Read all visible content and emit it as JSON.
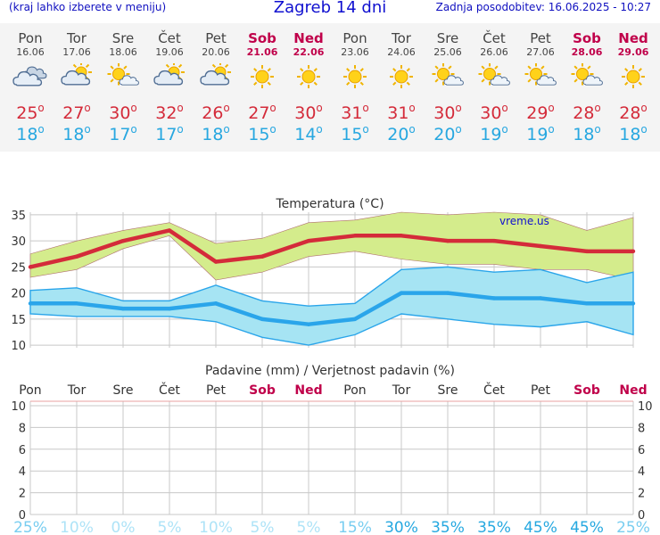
{
  "header": {
    "menu_hint": "(kraj lahko izberete v meniju)",
    "title": "Zagreb 14 dni",
    "updated": "Zadnja posodobitev: 16.06.2025 - 10:27"
  },
  "days": [
    {
      "name": "Pon",
      "date": "16.06",
      "weekend": false,
      "icon": "cloudy-icon",
      "tmax": "25",
      "tmin": "18"
    },
    {
      "name": "Tor",
      "date": "17.06",
      "weekend": false,
      "icon": "partly-cloudy-icon",
      "tmax": "27",
      "tmin": "18"
    },
    {
      "name": "Sre",
      "date": "18.06",
      "weekend": false,
      "icon": "sun-cloud-icon",
      "tmax": "30",
      "tmin": "17"
    },
    {
      "name": "Čet",
      "date": "19.06",
      "weekend": false,
      "icon": "partly-cloudy-icon",
      "tmax": "32",
      "tmin": "17"
    },
    {
      "name": "Pet",
      "date": "20.06",
      "weekend": false,
      "icon": "partly-cloudy-icon",
      "tmax": "26",
      "tmin": "18"
    },
    {
      "name": "Sob",
      "date": "21.06",
      "weekend": true,
      "icon": "sun-icon",
      "tmax": "27",
      "tmin": "15"
    },
    {
      "name": "Ned",
      "date": "22.06",
      "weekend": true,
      "icon": "sun-icon",
      "tmax": "30",
      "tmin": "14"
    },
    {
      "name": "Pon",
      "date": "23.06",
      "weekend": false,
      "icon": "sun-icon",
      "tmax": "31",
      "tmin": "15"
    },
    {
      "name": "Tor",
      "date": "24.06",
      "weekend": false,
      "icon": "sun-icon",
      "tmax": "31",
      "tmin": "20"
    },
    {
      "name": "Sre",
      "date": "25.06",
      "weekend": false,
      "icon": "sun-cloud-icon",
      "tmax": "30",
      "tmin": "20"
    },
    {
      "name": "Čet",
      "date": "26.06",
      "weekend": false,
      "icon": "sun-cloud-icon",
      "tmax": "30",
      "tmin": "19"
    },
    {
      "name": "Pet",
      "date": "27.06",
      "weekend": false,
      "icon": "sun-cloud-icon",
      "tmax": "29",
      "tmin": "19"
    },
    {
      "name": "Sob",
      "date": "28.06",
      "weekend": true,
      "icon": "sun-cloud-icon",
      "tmax": "28",
      "tmin": "18"
    },
    {
      "name": "Ned",
      "date": "29.06",
      "weekend": true,
      "icon": "sun-icon",
      "tmax": "28",
      "tmin": "18"
    }
  ],
  "colors": {
    "max_line": "#d42b3a",
    "max_band": "#d4ec8c",
    "min_line": "#2aa5ea",
    "min_band": "#a6e4f3",
    "weekend": "#c0004a",
    "grid": "#c8c8c8",
    "title_blue": "#1010d0",
    "prob_pale": "#aee3f7",
    "prob_mid": "#78cdf0",
    "prob_strong": "#25a8e0"
  },
  "chart_data": [
    {
      "type": "line",
      "title": "Temperatura (°C)",
      "watermark": "vreme.us",
      "categories": [
        "Pon",
        "Tor",
        "Sre",
        "Čet",
        "Pet",
        "Sob",
        "Ned",
        "Pon",
        "Tor",
        "Sre",
        "Čet",
        "Pet",
        "Sob",
        "Ned"
      ],
      "yticks": [
        10,
        15,
        20,
        25,
        30,
        35
      ],
      "ylim": [
        9.5,
        35.5
      ],
      "series": [
        {
          "name": "max",
          "values": [
            25,
            27,
            30,
            32,
            26,
            27,
            30,
            31,
            31,
            30,
            30,
            29,
            28,
            28
          ]
        },
        {
          "name": "max_upper",
          "values": [
            27.5,
            30,
            32,
            33.5,
            29.5,
            30.5,
            33.5,
            34,
            35.5,
            35,
            35.5,
            35,
            32,
            34.5
          ]
        },
        {
          "name": "max_lower",
          "values": [
            23,
            24.5,
            28.5,
            31,
            22.5,
            24,
            27,
            28,
            26.5,
            25.5,
            25.5,
            24.5,
            24.5,
            22.5
          ]
        },
        {
          "name": "min",
          "values": [
            18,
            18,
            17,
            17,
            18,
            15,
            14,
            15,
            20,
            20,
            19,
            19,
            18,
            18
          ]
        },
        {
          "name": "min_upper",
          "values": [
            20.5,
            21,
            18.5,
            18.5,
            21.5,
            18.5,
            17.5,
            18,
            24.5,
            25,
            24,
            24.5,
            22,
            24
          ]
        },
        {
          "name": "min_lower",
          "values": [
            16,
            15.5,
            15.5,
            15.5,
            14.5,
            11.5,
            10,
            12,
            16,
            15,
            14,
            13.5,
            14.5,
            12
          ]
        }
      ]
    },
    {
      "type": "bar",
      "title": "Padavine (mm) / Verjetnost padavin (%)",
      "categories": [
        "Pon",
        "Tor",
        "Sre",
        "Čet",
        "Pet",
        "Sob",
        "Ned",
        "Pon",
        "Tor",
        "Sre",
        "Čet",
        "Pet",
        "Sob",
        "Ned"
      ],
      "precip_mm": [
        0,
        0,
        0,
        0,
        0,
        0,
        0,
        0,
        0,
        0,
        0,
        0,
        0,
        0
      ],
      "probability": [
        "25%",
        "10%",
        "0%",
        "5%",
        "10%",
        "5%",
        "5%",
        "15%",
        "30%",
        "35%",
        "35%",
        "45%",
        "45%",
        "25%"
      ],
      "yticks": [
        0,
        2,
        4,
        6,
        8,
        10
      ],
      "ylim": [
        0,
        10
      ]
    }
  ]
}
